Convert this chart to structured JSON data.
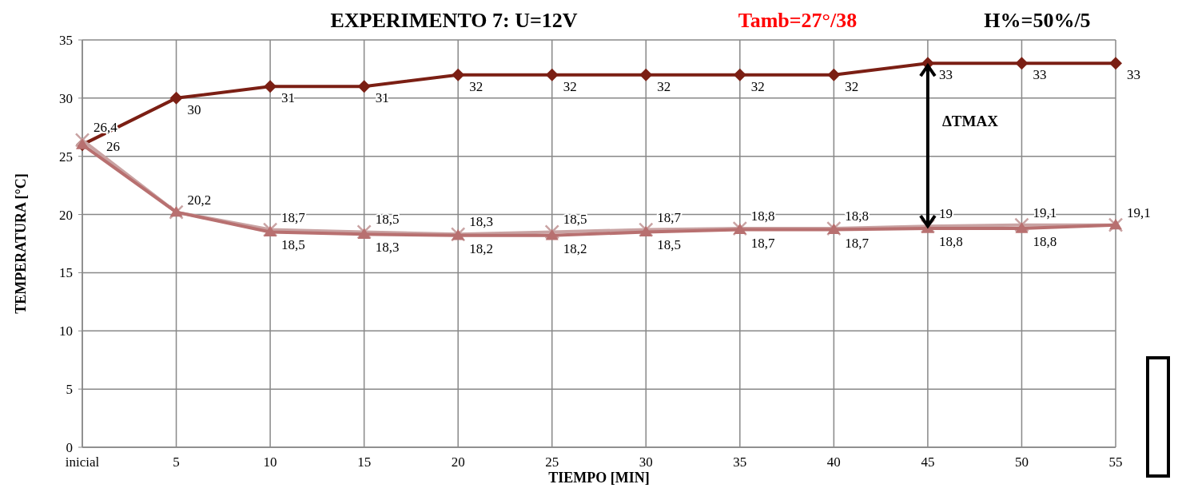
{
  "chart_data": {
    "type": "line",
    "title": "EXPERIMENTO 7:  U=12V",
    "subtitle": "Tamb=27°/38",
    "annotations": [
      "H%=50%/5",
      "ΔTMAX"
    ],
    "xlabel": "TIEMPO [MIN]",
    "ylabel": "TEMPERATURA [°C]",
    "categories": [
      "inicial",
      "5",
      "10",
      "15",
      "20",
      "25",
      "30",
      "35",
      "40",
      "45",
      "50",
      "55"
    ],
    "series": [
      {
        "color": "#7b1f14",
        "marker": "diamond",
        "values": [
          26,
          30,
          31,
          31,
          32,
          32,
          32,
          32,
          32,
          33,
          33,
          33
        ],
        "value_labels": [
          "26",
          "30",
          "31",
          "31",
          "32",
          "32",
          "32",
          "32",
          "32",
          "33",
          "33",
          "33"
        ]
      },
      {
        "color": "#c9a3a3",
        "marker": "cross",
        "values": [
          26.4,
          20.2,
          18.7,
          18.5,
          18.3,
          18.5,
          18.7,
          18.8,
          18.8,
          19,
          19.1,
          19.1
        ],
        "value_labels": [
          "26,4",
          "20,2",
          "18,7",
          "18,5",
          "18,3",
          "18,5",
          "18,7",
          "18,8",
          "18,8",
          "19",
          "19,1",
          "19,1"
        ]
      },
      {
        "color": "#b87070",
        "marker": "triangle",
        "values": [
          26,
          20.2,
          18.5,
          18.3,
          18.2,
          18.2,
          18.5,
          18.7,
          18.7,
          18.8,
          18.8,
          19.1
        ],
        "value_labels": [
          null,
          null,
          "18,5",
          "18,3",
          "18,2",
          "18,2",
          "18,5",
          "18,7",
          "18,7",
          "18,8",
          "18,8",
          null
        ]
      }
    ],
    "ylim": [
      0,
      35
    ],
    "yticks": [
      0,
      5,
      10,
      15,
      20,
      25,
      30,
      35
    ],
    "grid": true
  }
}
